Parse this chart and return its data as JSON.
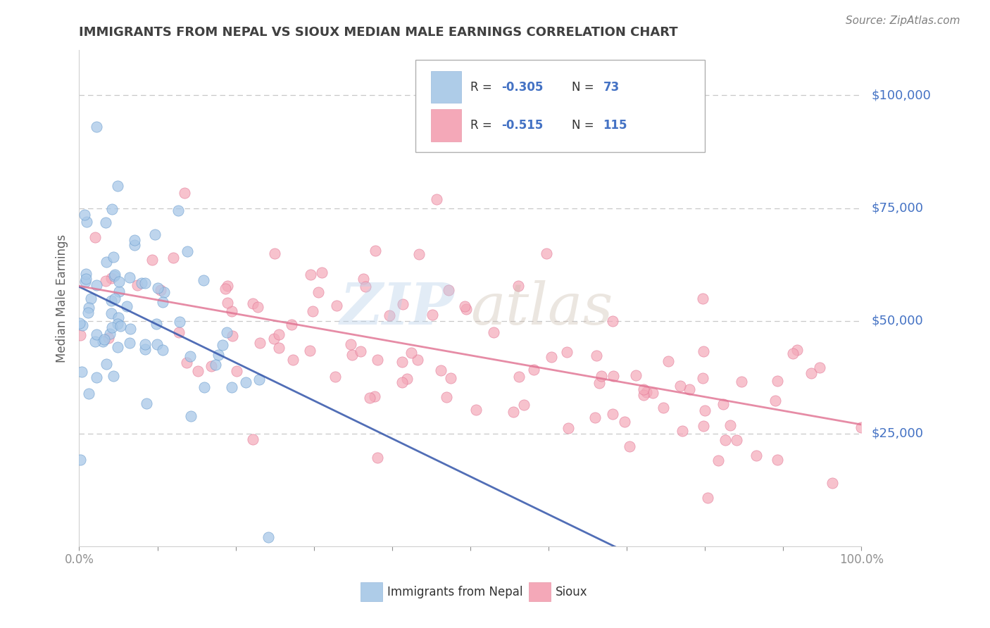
{
  "title": "IMMIGRANTS FROM NEPAL VS SIOUX MEDIAN MALE EARNINGS CORRELATION CHART",
  "source_text": "Source: ZipAtlas.com",
  "ylabel": "Median Male Earnings",
  "xlim": [
    0.0,
    100.0
  ],
  "ylim": [
    0,
    110000
  ],
  "yticks": [
    0,
    25000,
    50000,
    75000,
    100000
  ],
  "nepal_scatter_color": "#a8c8e8",
  "nepal_scatter_edge": "#6699cc",
  "sioux_scatter_color": "#f4a8b8",
  "sioux_scatter_edge": "#e07090",
  "nepal_line_color": "#3355aa",
  "sioux_line_color": "#e07090",
  "background_color": "#ffffff",
  "grid_color": "#c8c8c8",
  "title_color": "#404040",
  "axis_label_color": "#606060",
  "right_tick_color": "#4472c4",
  "source_color": "#808080",
  "nepal_R": -0.305,
  "nepal_N": 73,
  "sioux_R": -0.515,
  "sioux_N": 115,
  "legend_nepal_color": "#aecce8",
  "legend_sioux_color": "#f4a8b8",
  "bottom_legend_nepal_color": "#aecce8",
  "bottom_legend_sioux_color": "#f4a8b8"
}
